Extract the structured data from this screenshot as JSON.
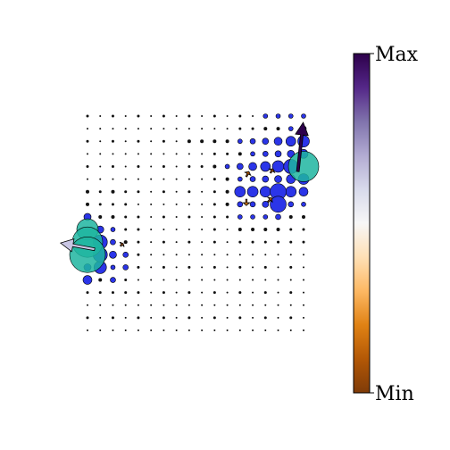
{
  "chart_data": {
    "type": "scatter",
    "x": [
      0,
      1,
      2,
      3,
      4,
      5,
      6,
      7,
      8,
      9,
      10,
      11,
      12,
      13,
      14,
      15,
      16,
      17
    ],
    "y": [
      0,
      1,
      2,
      3,
      4,
      5,
      6,
      7,
      8,
      9,
      10,
      11,
      12,
      13,
      14,
      15,
      16,
      17
    ],
    "xlim": [
      0,
      17
    ],
    "ylim": [
      17,
      0
    ],
    "sizes": [
      [
        1.5,
        1,
        1.5,
        1,
        1.5,
        1,
        1.5,
        1,
        1.5,
        1,
        1.5,
        1,
        1.5,
        1,
        2.5,
        2.5,
        2.5,
        2.5
      ],
      [
        1,
        1,
        1,
        1,
        1,
        1,
        1,
        1,
        1,
        1,
        1,
        1,
        1.5,
        1.5,
        2,
        2,
        2.5,
        3
      ],
      [
        1.5,
        1,
        1.5,
        1,
        1.5,
        1,
        1.5,
        1,
        2,
        2,
        2,
        2,
        2.5,
        3,
        3.5,
        4.5,
        5.5,
        6.5
      ],
      [
        1,
        1,
        1,
        1,
        1,
        1,
        1,
        1,
        1,
        1,
        1.5,
        1.5,
        2,
        2.5,
        3,
        3.5,
        4,
        5
      ],
      [
        1.5,
        1,
        1.5,
        1,
        1.5,
        1,
        1.5,
        1,
        1.5,
        1.5,
        2,
        2.5,
        3.5,
        4.5,
        5.5,
        6.5,
        8,
        17
      ],
      [
        1,
        1,
        1,
        1,
        1,
        1,
        1,
        1,
        1,
        1,
        1.5,
        2,
        2.5,
        3,
        3.5,
        4,
        5,
        6
      ],
      [
        2,
        1.5,
        2,
        1.5,
        1.5,
        1,
        1.5,
        1,
        1.5,
        1,
        1.5,
        2,
        6,
        6,
        6,
        9,
        6,
        5
      ],
      [
        2,
        1.5,
        1.5,
        1.5,
        1,
        1,
        1,
        1,
        1,
        1,
        1.5,
        2,
        3,
        3,
        3.5,
        9,
        3,
        2.5
      ],
      [
        4,
        2,
        2,
        1.5,
        1.5,
        1,
        1.5,
        1,
        1.5,
        1,
        1.5,
        1.5,
        2.5,
        2.5,
        2.5,
        3,
        2,
        2
      ],
      [
        12,
        4,
        2.5,
        1.5,
        1.5,
        1,
        1,
        1,
        1,
        1,
        1.5,
        1,
        2,
        2,
        2,
        2,
        1.5,
        1.5
      ],
      [
        17,
        8,
        3,
        2,
        1.5,
        1,
        1.5,
        1,
        1.5,
        1,
        1.5,
        1,
        1.5,
        1.5,
        1.5,
        1.5,
        1.5,
        1.5
      ],
      [
        20,
        8,
        4,
        3,
        1.5,
        1,
        1,
        1,
        1,
        1,
        1,
        1,
        1,
        1,
        1,
        1,
        1,
        1
      ],
      [
        4,
        7,
        2.5,
        3,
        1.5,
        1,
        1.5,
        1,
        1.5,
        1,
        1.5,
        1,
        1.5,
        1,
        1.5,
        1,
        1.5,
        1
      ],
      [
        5,
        2,
        3,
        1.5,
        1,
        1,
        1,
        1,
        1,
        1,
        1,
        1,
        1,
        1,
        1,
        1,
        1,
        1
      ],
      [
        1.5,
        1.5,
        1.5,
        1.5,
        1.5,
        1,
        1.5,
        1,
        1.5,
        1,
        1.5,
        1,
        1.5,
        1,
        1.5,
        1,
        1.5,
        1
      ],
      [
        1,
        1,
        1,
        1,
        1,
        1,
        1,
        1,
        1,
        1,
        1,
        1,
        1,
        1,
        1,
        1,
        1,
        1
      ],
      [
        1.5,
        1,
        1.5,
        1,
        1.5,
        1,
        1.5,
        1,
        1.5,
        1,
        1.5,
        1,
        1.5,
        1,
        1.5,
        1,
        1.5,
        1
      ],
      [
        1,
        1,
        1,
        1,
        1,
        1,
        1,
        1,
        1,
        1,
        1,
        1,
        1,
        1,
        1,
        1,
        1,
        1
      ]
    ],
    "dot_colors": {
      "small": "#111111",
      "medium": "#2b35e8",
      "large": "#1fb5a0"
    },
    "arrows": [
      {
        "x": 16.55,
        "y": 4.4,
        "u": 0.42,
        "v": -3.9,
        "color": "#2d004b"
      },
      {
        "x": 0.56,
        "y": 10.57,
        "u": -2.68,
        "v": -0.5,
        "color": "#c9c6e4"
      },
      {
        "x": 12.5,
        "y": 4.8,
        "u": 0.2,
        "v": -0.4,
        "color": "#b35806"
      },
      {
        "x": 14.4,
        "y": 4.5,
        "u": 0.2,
        "v": -0.3,
        "color": "#b35806"
      },
      {
        "x": 12.5,
        "y": 6.6,
        "u": 0,
        "v": 0.5,
        "color": "#e08214"
      },
      {
        "x": 14.2,
        "y": 6.8,
        "u": 0.3,
        "v": -0.3,
        "color": "#b35806"
      },
      {
        "x": 2.6,
        "y": 10.3,
        "u": 0.2,
        "v": -0.2,
        "color": "#b35806"
      }
    ],
    "colorbar": {
      "colors": [
        "#7f3b08",
        "#b35806",
        "#e08214",
        "#fdb863",
        "#fee0b6",
        "#f7f7f7",
        "#d8daeb",
        "#b2abd2",
        "#8073ac",
        "#542788",
        "#2d004b"
      ],
      "max_label": "Max",
      "min_label": "Min"
    }
  }
}
